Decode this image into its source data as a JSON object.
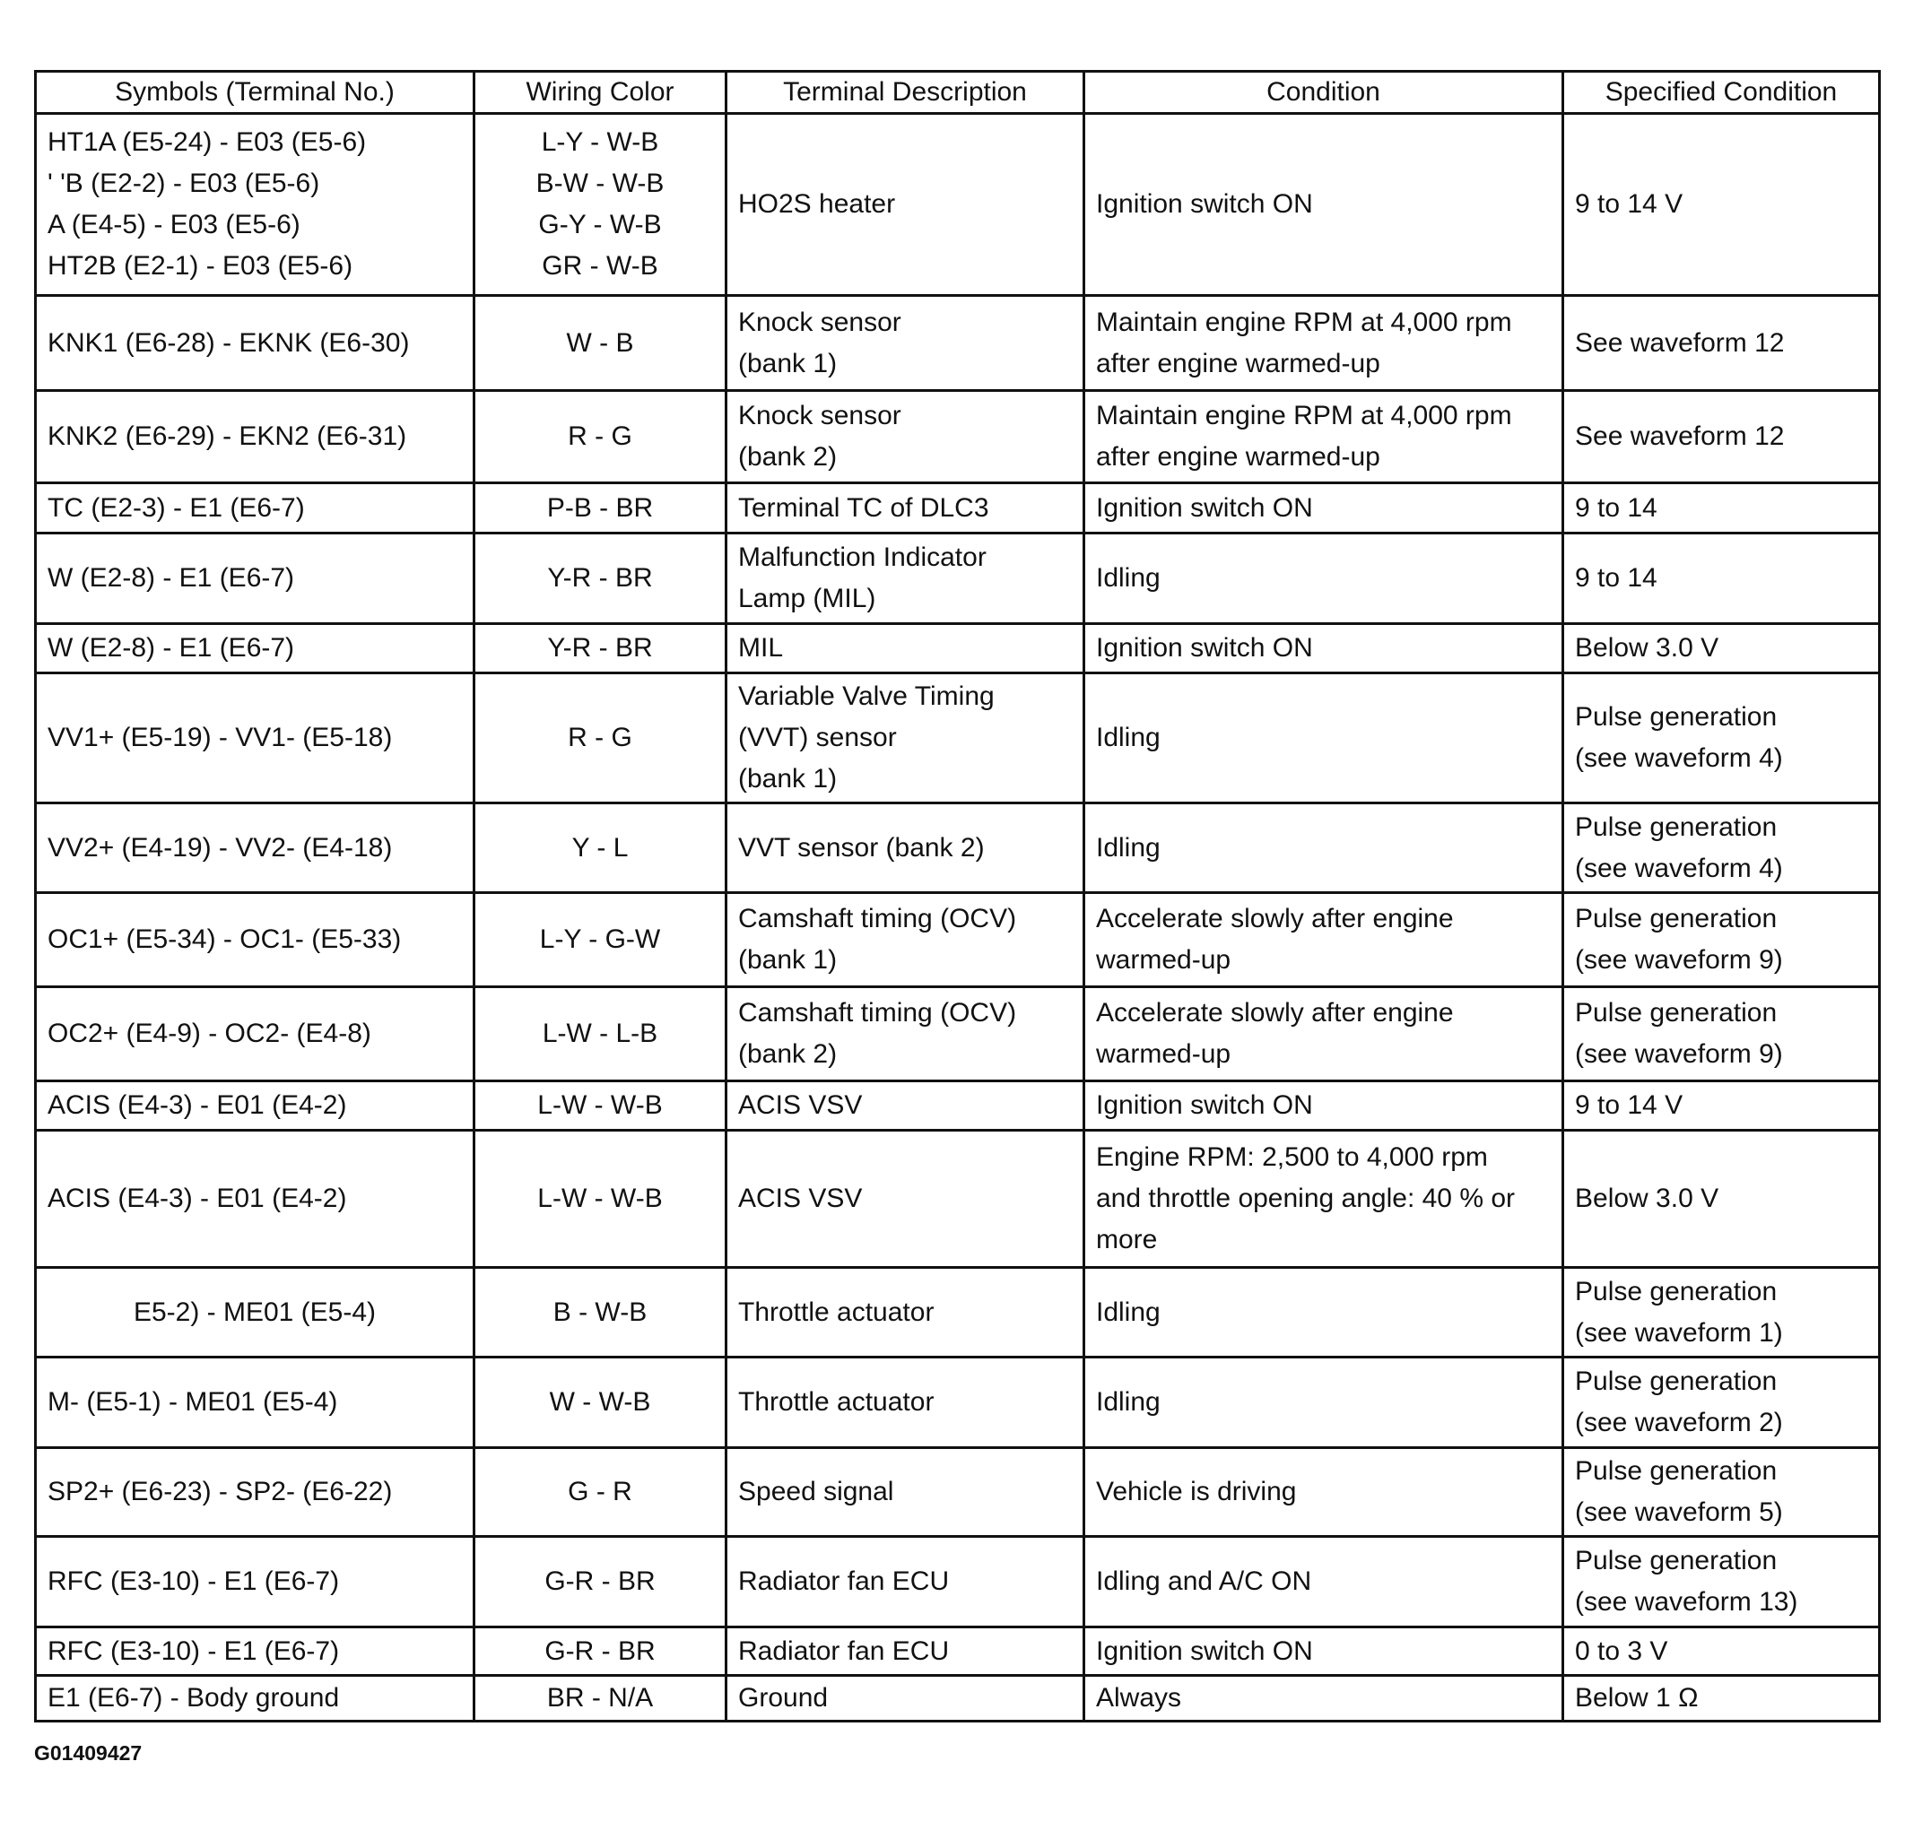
{
  "headers": [
    "Symbols (Terminal No.)",
    "Wiring Color",
    "Terminal Description",
    "Condition",
    "Specified Condition"
  ],
  "rows": [
    {
      "symbols": "HT1A (E5-24) - E03 (E5-6)\n' 'B (E2-2) - E03 (E5-6)\n  A (E4-5) - E03 (E5-6)\nHT2B (E2-1) - E03 (E5-6)",
      "wiring": "L-Y - W-B\nB-W - W-B\nG-Y - W-B\nGR - W-B",
      "description": "HO2S heater",
      "condition": "Ignition switch ON",
      "specified": "9 to 14 V"
    },
    {
      "symbols": "KNK1 (E6-28) - EKNK (E6-30)",
      "wiring": "W - B",
      "description": "Knock sensor\n(bank 1)",
      "condition": "Maintain engine RPM at 4,000 rpm\nafter engine warmed-up",
      "specified": "See waveform 12"
    },
    {
      "symbols": "KNK2 (E6-29) - EKN2 (E6-31)",
      "wiring": "R - G",
      "description": "Knock sensor\n(bank 2)",
      "condition": "Maintain engine RPM at 4,000 rpm\nafter engine warmed-up",
      "specified": "See waveform 12"
    },
    {
      "symbols": "TC (E2-3) - E1 (E6-7)",
      "wiring": "P-B - BR",
      "description": "Terminal TC of DLC3",
      "condition": "Ignition switch ON",
      "specified": "9 to 14"
    },
    {
      "symbols": "W (E2-8) - E1 (E6-7)",
      "wiring": "Y-R - BR",
      "description": "Malfunction Indicator\nLamp (MIL)",
      "condition": "Idling",
      "specified": "9 to 14"
    },
    {
      "symbols": "W (E2-8) - E1 (E6-7)",
      "wiring": "Y-R - BR",
      "description": "MIL",
      "condition": "Ignition switch ON",
      "specified": "Below 3.0 V"
    },
    {
      "symbols": "VV1+ (E5-19) - VV1- (E5-18)",
      "wiring": "R - G",
      "description": "Variable Valve Timing\n(VVT) sensor\n(bank 1)",
      "condition": "Idling",
      "specified": "Pulse generation\n(see waveform 4)"
    },
    {
      "symbols": "VV2+ (E4-19) - VV2- (E4-18)",
      "wiring": "Y - L",
      "description": "VVT sensor (bank 2)",
      "condition": "Idling",
      "specified": "Pulse generation\n(see waveform 4)"
    },
    {
      "symbols": "OC1+ (E5-34) - OC1- (E5-33)",
      "wiring": "L-Y - G-W",
      "description": "Camshaft timing (OCV)\n(bank 1)",
      "condition": "Accelerate slowly after engine\nwarmed-up",
      "specified": "Pulse generation\n(see waveform 9)"
    },
    {
      "symbols": "OC2+ (E4-9) - OC2- (E4-8)",
      "wiring": "L-W - L-B",
      "description": "Camshaft timing (OCV)\n(bank 2)",
      "condition": "Accelerate slowly after engine\nwarmed-up",
      "specified": "Pulse generation\n(see waveform 9)"
    },
    {
      "symbols": "ACIS (E4-3) - E01 (E4-2)",
      "wiring": "L-W - W-B",
      "description": "ACIS VSV",
      "condition": "Ignition switch ON",
      "specified": "9 to 14 V"
    },
    {
      "symbols": "ACIS (E4-3) - E01 (E4-2)",
      "wiring": "L-W - W-B",
      "description": "ACIS VSV",
      "condition": "Engine RPM: 2,500 to 4,000 rpm\nand throttle opening angle: 40 % or\nmore",
      "specified": "Below 3.0 V"
    },
    {
      "symbols": "E5-2) - ME01 (E5-4)",
      "wiring": "B - W-B",
      "description": "Throttle actuator",
      "condition": "Idling",
      "specified": "Pulse generation\n(see waveform 1)"
    },
    {
      "symbols": "M- (E5-1) - ME01 (E5-4)",
      "wiring": "W - W-B",
      "description": "Throttle actuator",
      "condition": "Idling",
      "specified": "Pulse generation\n(see waveform 2)"
    },
    {
      "symbols": "SP2+ (E6-23) - SP2- (E6-22)",
      "wiring": "G - R",
      "description": "Speed signal",
      "condition": "Vehicle is driving",
      "specified": "Pulse generation\n(see waveform 5)"
    },
    {
      "symbols": "RFC (E3-10) - E1 (E6-7)",
      "wiring": "G-R - BR",
      "description": "Radiator fan ECU",
      "condition": "Idling and A/C ON",
      "specified": "Pulse generation\n(see waveform 13)"
    },
    {
      "symbols": "RFC (E3-10) - E1 (E6-7)",
      "wiring": "G-R - BR",
      "description": "Radiator fan ECU",
      "condition": "Ignition switch ON",
      "specified": "0 to 3 V"
    },
    {
      "symbols": "E1 (E6-7) - Body ground",
      "wiring": "BR - N/A",
      "description": "Ground",
      "condition": "Always",
      "specified": "Below 1 Ω"
    }
  ],
  "figure_id": "G01409427"
}
